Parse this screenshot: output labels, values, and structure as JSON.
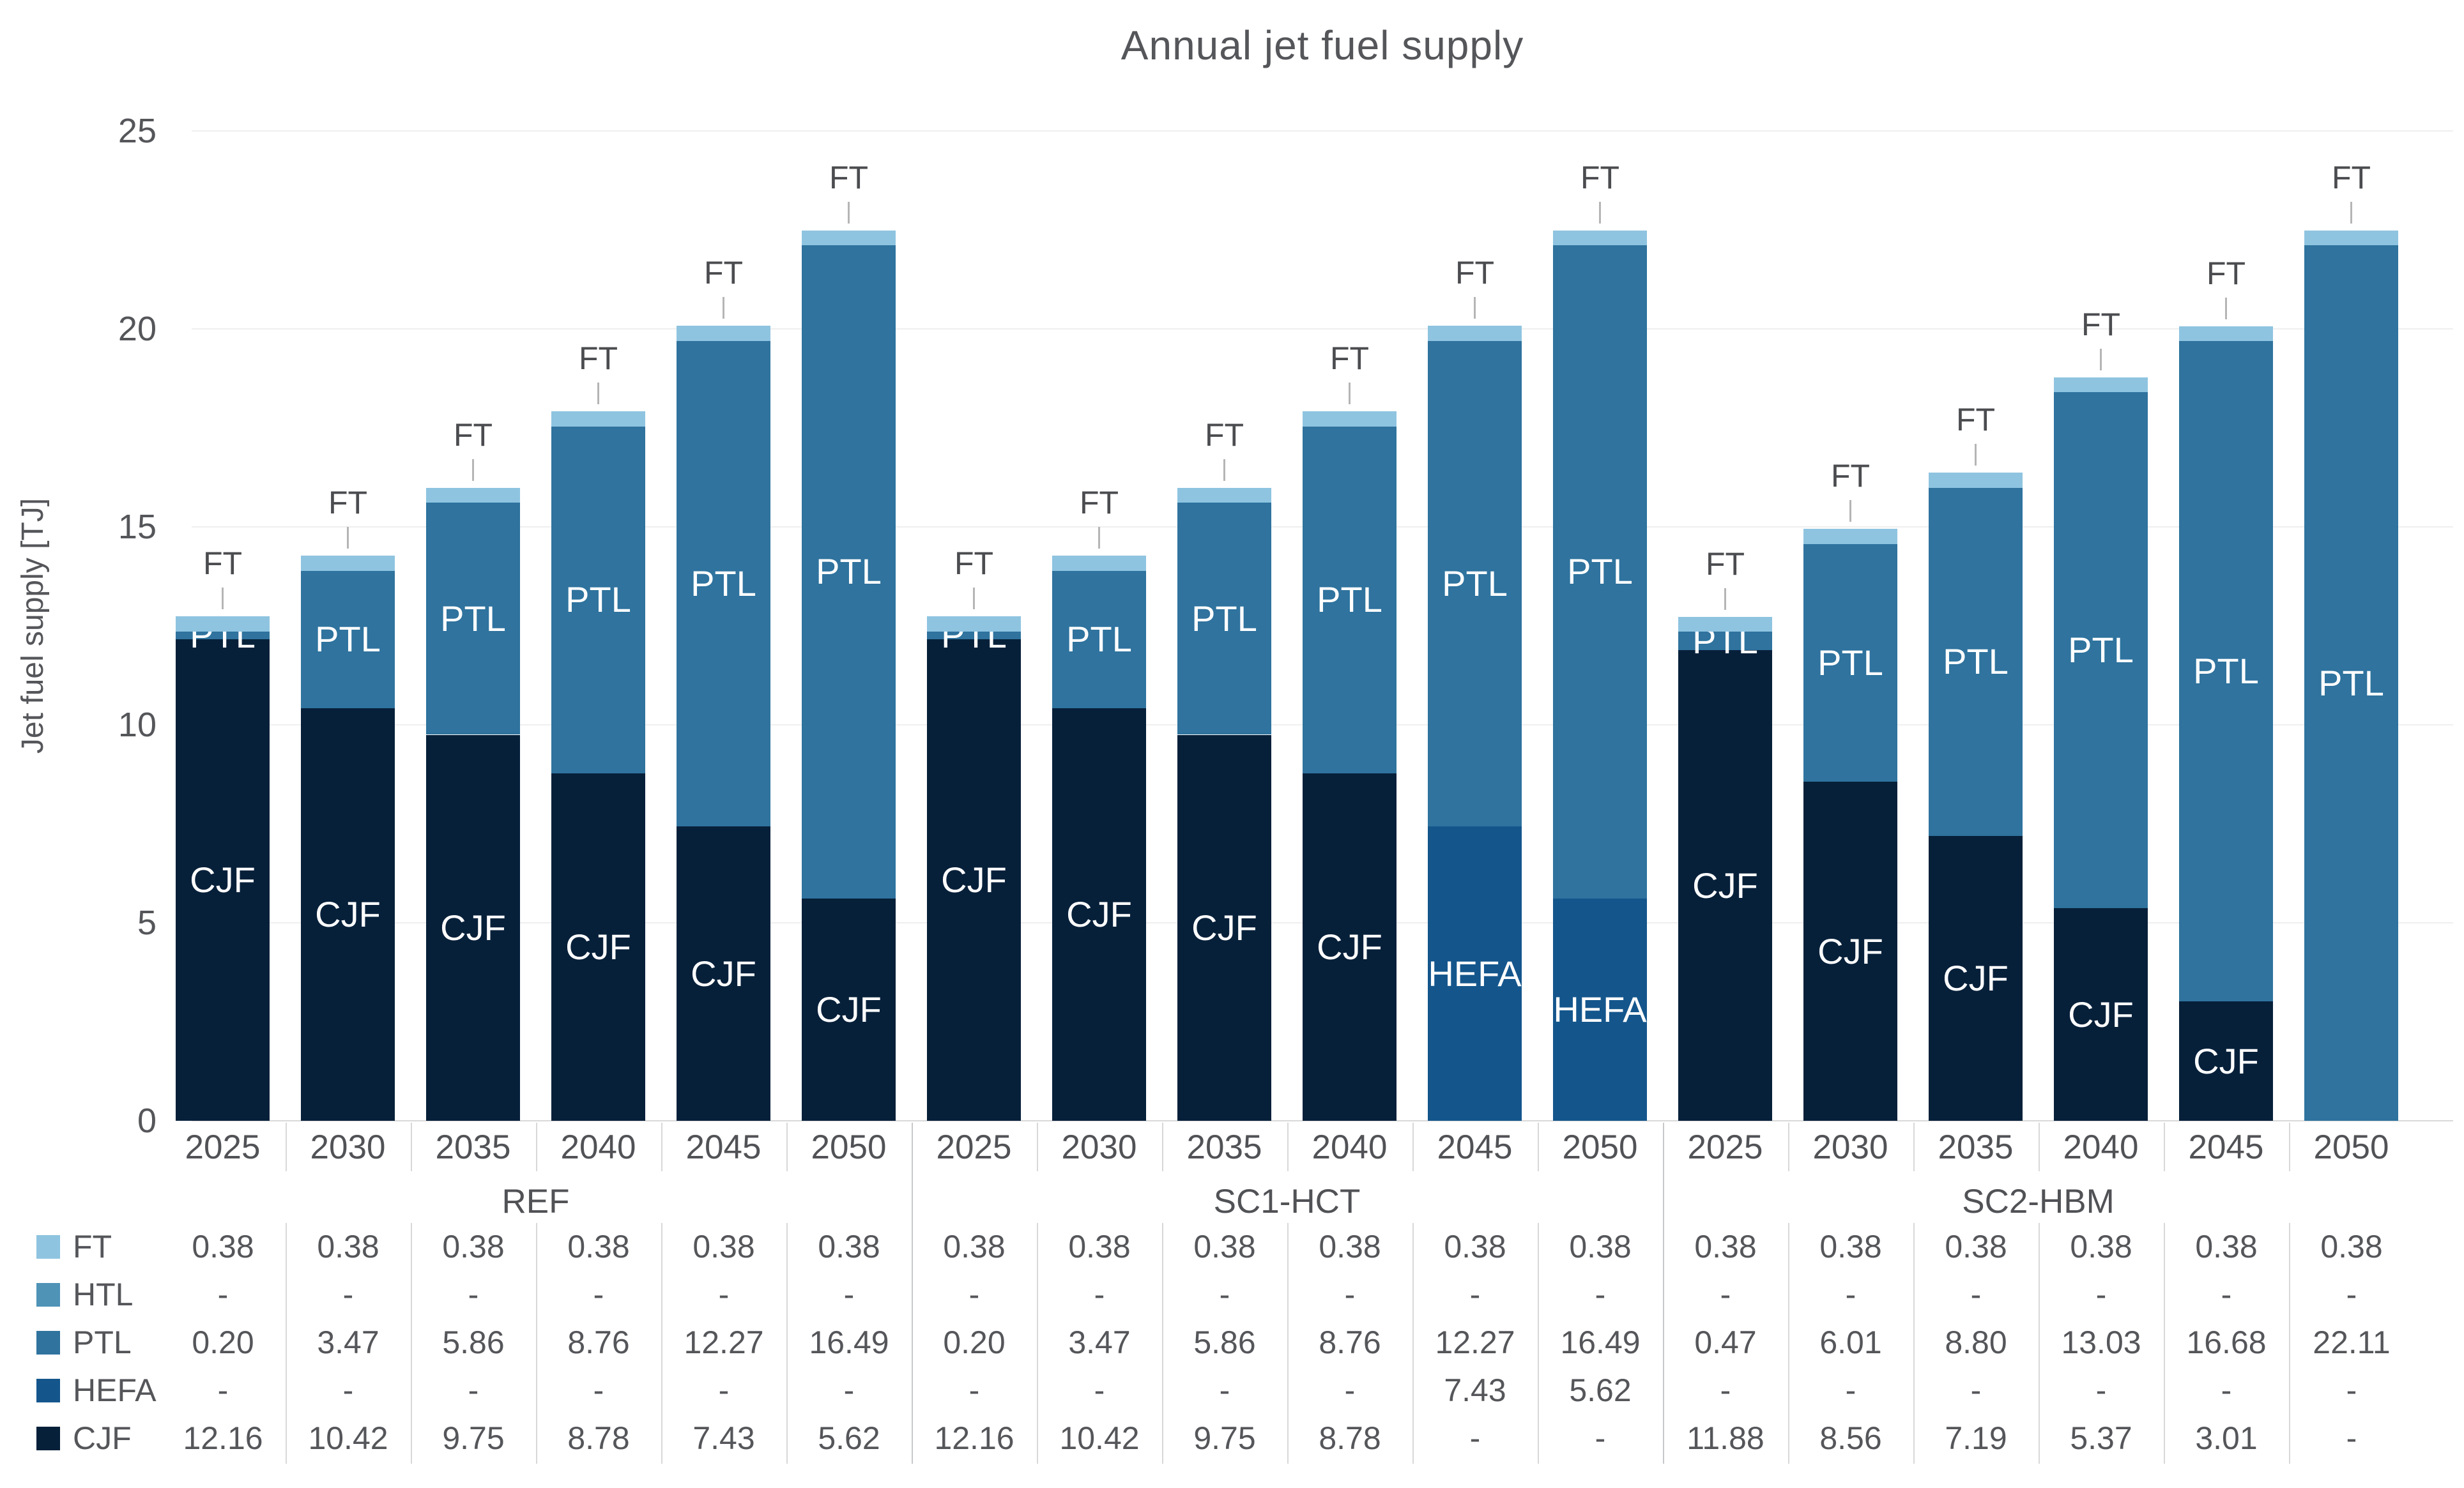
{
  "chart_data": {
    "type": "bar",
    "stacked": true,
    "title": "Annual jet fuel supply",
    "ylabel": "Jet fuel supply [TJ]",
    "ylim": [
      0,
      25
    ],
    "yticks": [
      0,
      5,
      10,
      15,
      20,
      25
    ],
    "grid": true,
    "legend_position": "table-left",
    "null_display": "-",
    "group_labels": [
      "REF",
      "SC1-HCT",
      "SC2-HBM"
    ],
    "years": [
      "2025",
      "2030",
      "2035",
      "2040",
      "2045",
      "2050"
    ],
    "stack_order_bottom_to_top": [
      "CJF",
      "HEFA",
      "PTL",
      "HTL",
      "FT"
    ],
    "series": [
      {
        "name": "FT",
        "color": "#8ec4e0",
        "label_style": "above",
        "values": [
          0.38,
          0.38,
          0.38,
          0.38,
          0.38,
          0.38,
          0.38,
          0.38,
          0.38,
          0.38,
          0.38,
          0.38,
          0.38,
          0.38,
          0.38,
          0.38,
          0.38,
          0.38
        ]
      },
      {
        "name": "HTL",
        "color": "#4f93b7",
        "label_style": "none",
        "values": [
          null,
          null,
          null,
          null,
          null,
          null,
          null,
          null,
          null,
          null,
          null,
          null,
          null,
          null,
          null,
          null,
          null,
          null
        ]
      },
      {
        "name": "PTL",
        "color": "#2f739e",
        "label_style": "inside",
        "values": [
          0.2,
          3.47,
          5.86,
          8.76,
          12.27,
          16.49,
          0.2,
          3.47,
          5.86,
          8.76,
          12.27,
          16.49,
          0.47,
          6.01,
          8.8,
          13.03,
          16.68,
          22.11
        ]
      },
      {
        "name": "HEFA",
        "color": "#14568c",
        "label_style": "inside",
        "values": [
          null,
          null,
          null,
          null,
          null,
          null,
          null,
          null,
          null,
          null,
          7.43,
          5.62,
          null,
          null,
          null,
          null,
          null,
          null
        ]
      },
      {
        "name": "CJF",
        "color": "#07203a",
        "label_style": "inside",
        "values": [
          12.16,
          10.42,
          9.75,
          8.78,
          7.43,
          5.62,
          12.16,
          10.42,
          9.75,
          8.78,
          null,
          null,
          11.88,
          8.56,
          7.19,
          5.37,
          3.01,
          null
        ]
      }
    ]
  }
}
